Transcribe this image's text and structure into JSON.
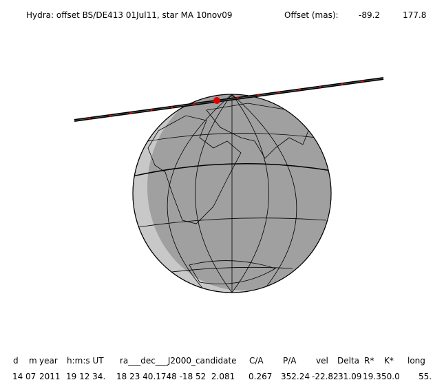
{
  "header": {
    "title": "Hydra: offset BS/DE413 01Jul11, star MA 10nov09",
    "offset_label": "Offset (mas):",
    "offset_values": [
      "-89.2",
      "177.8"
    ]
  },
  "table": {
    "headers": [
      "d",
      "m",
      "year",
      "h:m:s UT",
      "ra___dec___J2000_candidate",
      "C/A",
      "P/A",
      "vel",
      "Delta",
      "R*",
      "K*",
      "long"
    ],
    "rows": [
      [
        "14",
        "07",
        "2011",
        "19 12 34.",
        "18 23 40.1748 -18 52  2.081",
        "0.267",
        "352.24",
        "-22.82",
        "31.09",
        "19.3",
        "50.0",
        "55."
      ]
    ]
  }
}
